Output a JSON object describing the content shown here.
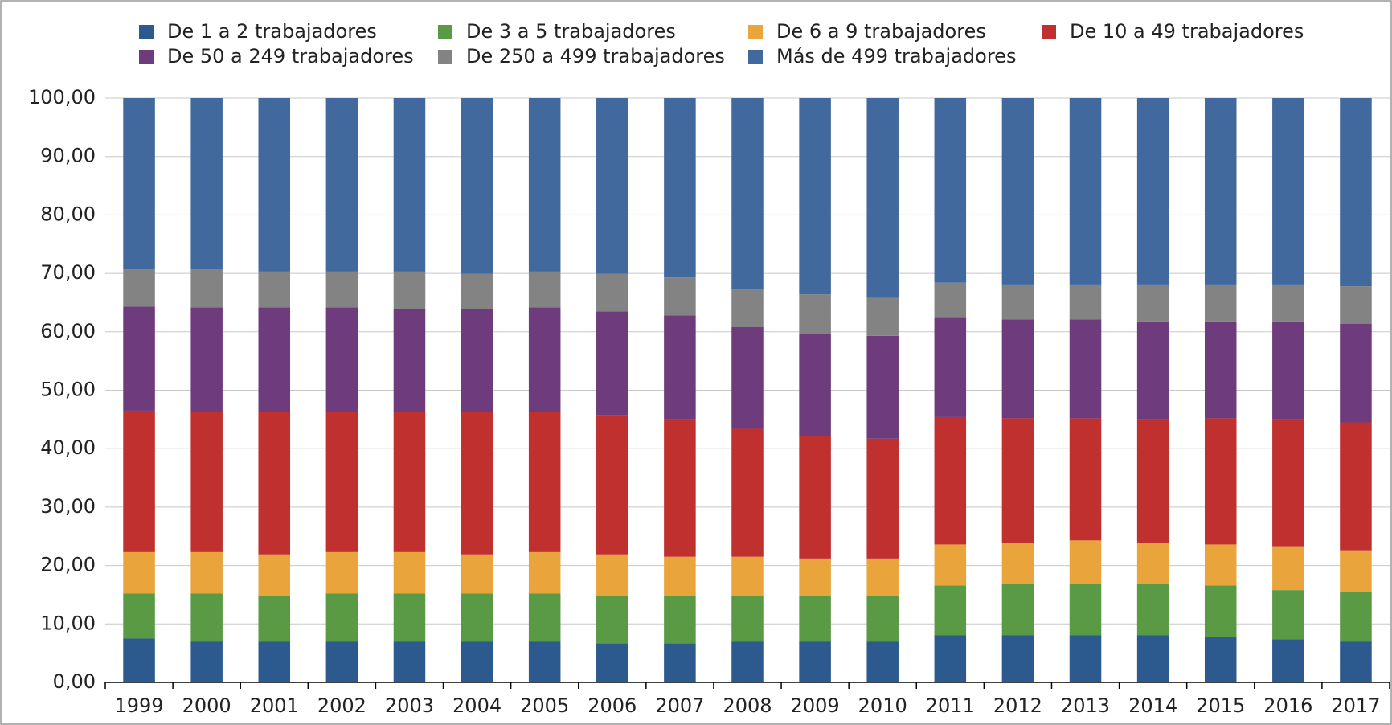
{
  "chart_data": {
    "type": "stacked_bar",
    "categories": [
      "1999",
      "2000",
      "2001",
      "2002",
      "2003",
      "2004",
      "2005",
      "2006",
      "2007",
      "2008",
      "2009",
      "2010",
      "2011",
      "2012",
      "2013",
      "2014",
      "2015",
      "2016",
      "2017"
    ],
    "series": [
      {
        "name": "De 1 a 2 trabajadores",
        "color": "#2c5a8f",
        "values": [
          7.5,
          7.0,
          7.0,
          7.0,
          7.0,
          7.0,
          7.0,
          6.7,
          6.7,
          7.0,
          7.0,
          7.0,
          8.1,
          8.1,
          8.1,
          8.1,
          7.7,
          7.4,
          7.0
        ]
      },
      {
        "name": "De 3 a 5 trabajadores",
        "color": "#5b9a45",
        "values": [
          7.7,
          8.2,
          7.9,
          8.2,
          8.2,
          8.2,
          8.2,
          8.2,
          8.2,
          7.9,
          7.9,
          7.9,
          8.5,
          8.8,
          8.8,
          8.8,
          8.9,
          8.4,
          8.5
        ]
      },
      {
        "name": "De 6 a 9 trabajadores",
        "color": "#e9a43c",
        "values": [
          7.1,
          7.1,
          7.0,
          7.1,
          7.1,
          6.7,
          7.1,
          7.0,
          6.6,
          6.6,
          6.3,
          6.3,
          7.0,
          7.0,
          7.4,
          7.0,
          7.0,
          7.5,
          7.1
        ]
      },
      {
        "name": "De 10 a 49 trabajadores",
        "color": "#c0302f",
        "values": [
          24.2,
          24.0,
          24.4,
          24.0,
          24.0,
          24.4,
          24.0,
          23.8,
          23.5,
          21.9,
          20.9,
          20.5,
          21.8,
          21.3,
          20.9,
          21.1,
          21.6,
          21.7,
          21.9
        ]
      },
      {
        "name": "De 50 a 249 trabajadores",
        "color": "#6e3b7c",
        "values": [
          17.8,
          17.9,
          17.9,
          17.9,
          17.6,
          17.6,
          17.9,
          17.8,
          17.8,
          17.4,
          17.5,
          17.6,
          17.0,
          16.9,
          16.9,
          16.8,
          16.6,
          16.8,
          16.9
        ]
      },
      {
        "name": "De 250 a 499 trabajadores",
        "color": "#838383",
        "values": [
          6.4,
          6.5,
          6.1,
          6.1,
          6.4,
          6.0,
          6.1,
          6.4,
          6.5,
          6.6,
          6.8,
          6.5,
          6.0,
          6.0,
          6.0,
          6.3,
          6.3,
          6.3,
          6.4
        ]
      },
      {
        "name": "Más de 499 trabajadores",
        "color": "#41699e",
        "values": [
          29.3,
          29.3,
          29.7,
          29.7,
          29.7,
          30.1,
          29.7,
          30.1,
          30.7,
          32.6,
          33.6,
          34.2,
          31.6,
          31.9,
          31.9,
          31.9,
          31.9,
          31.9,
          32.2
        ]
      }
    ],
    "ylim": [
      0,
      100
    ],
    "yticks": [
      {
        "value": 0,
        "label": "0,00"
      },
      {
        "value": 10,
        "label": "10,00"
      },
      {
        "value": 20,
        "label": "20,00"
      },
      {
        "value": 30,
        "label": "30,00"
      },
      {
        "value": 40,
        "label": "40,00"
      },
      {
        "value": 50,
        "label": "50,00"
      },
      {
        "value": 60,
        "label": "60,00"
      },
      {
        "value": 70,
        "label": "70,00"
      },
      {
        "value": 80,
        "label": "80,00"
      },
      {
        "value": 90,
        "label": "90,00"
      },
      {
        "value": 100,
        "label": "100,00"
      }
    ],
    "grid": true
  }
}
